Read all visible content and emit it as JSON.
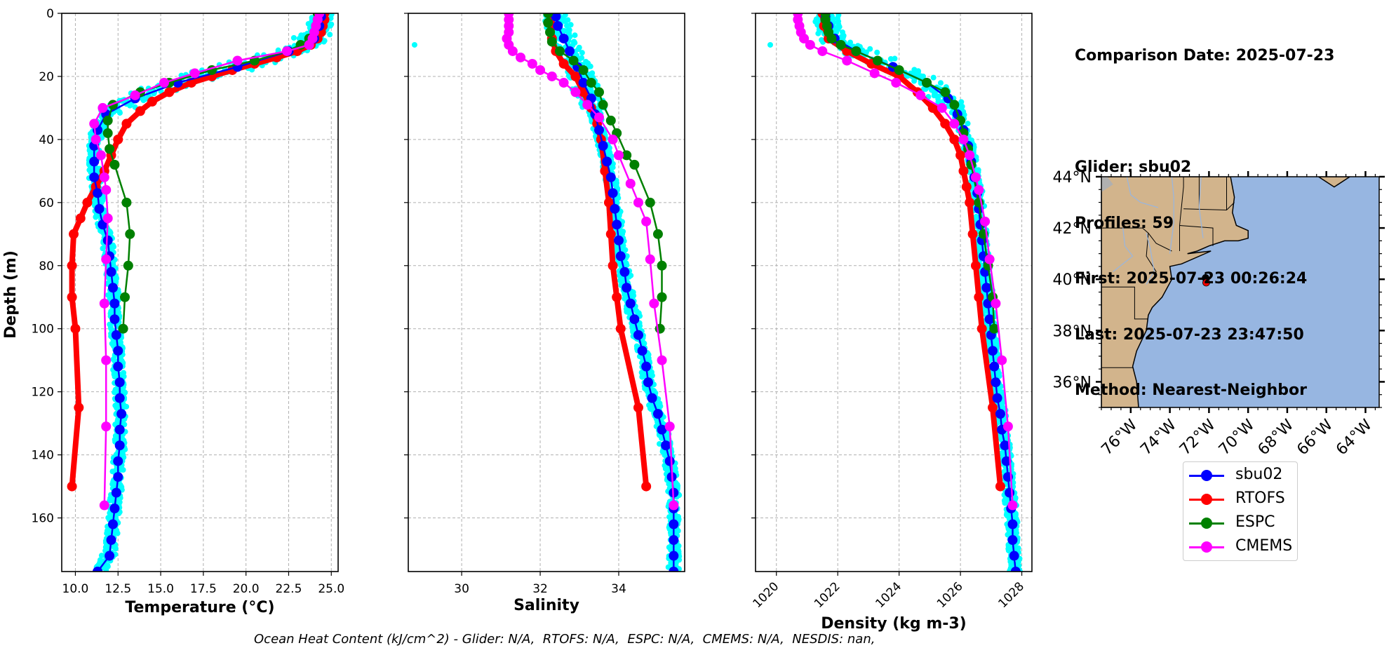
{
  "info_panel": {
    "lines": [
      "Comparison Date: 2025-07-23",
      "",
      "Glider: sbu02",
      "Profiles: 59",
      "First: 2025-07-23 00:26:24",
      "Last: 2025-07-23 23:47:50",
      "Method: Nearest-Neighbor"
    ]
  },
  "legend": {
    "items": [
      {
        "label": "sbu02",
        "color": "#0000ff"
      },
      {
        "label": "RTOFS",
        "color": "#ff0000"
      },
      {
        "label": "ESPC",
        "color": "#008000"
      },
      {
        "label": "CMEMS",
        "color": "#ff00ff"
      }
    ]
  },
  "footer": {
    "text": "Ocean Heat Content (kJ/cm^2) - Glider: N/A,  RTOFS: N/A,  ESPC: N/A,  CMEMS: N/A,  NESDIS: nan,"
  },
  "colors": {
    "glider_scatter": "#00ffff",
    "glider": "#0000ff",
    "rtofs": "#ff0000",
    "espc": "#008000",
    "cmems": "#ff00ff",
    "land": "#d2b48c",
    "ocean": "#97b6e1",
    "grid": "#b0b0b0"
  },
  "chart_data": [
    {
      "type": "line",
      "title": "",
      "xlabel": "Temperature (°C)",
      "ylabel": "Depth (m)",
      "xlim": [
        9.2,
        25.4
      ],
      "ylim": [
        177,
        0
      ],
      "xticks": [
        10.0,
        12.5,
        15.0,
        17.5,
        20.0,
        22.5,
        25.0
      ],
      "xtick_labels": [
        "10.0",
        "12.5",
        "15.0",
        "17.5",
        "20.0",
        "22.5",
        "25.0"
      ],
      "yticks": [
        0,
        20,
        40,
        60,
        80,
        100,
        120,
        140,
        160
      ],
      "ytick_labels": [
        "0",
        "20",
        "40",
        "60",
        "80",
        "100",
        "120",
        "140",
        "160"
      ],
      "grid": true,
      "series": [
        {
          "name": "sbu02",
          "depth": [
            1,
            4,
            8,
            12,
            17,
            22,
            27,
            32,
            37,
            42,
            47,
            52,
            57,
            62,
            67,
            72,
            77,
            82,
            87,
            92,
            97,
            102,
            107,
            112,
            117,
            122,
            127,
            132,
            137,
            142,
            147,
            152,
            157,
            162,
            167,
            172,
            177
          ],
          "values": [
            24.4,
            24.3,
            24.0,
            22.5,
            19.5,
            16.0,
            13.5,
            11.8,
            11.3,
            11.1,
            11.1,
            11.1,
            11.3,
            11.4,
            11.6,
            11.9,
            12.0,
            12.1,
            12.2,
            12.3,
            12.3,
            12.4,
            12.5,
            12.5,
            12.6,
            12.6,
            12.7,
            12.6,
            12.6,
            12.5,
            12.5,
            12.4,
            12.3,
            12.2,
            12.1,
            12.0,
            11.3
          ]
        },
        {
          "name": "RTOFS",
          "depth": [
            0,
            2,
            4,
            6,
            8,
            10,
            12,
            14,
            16,
            18,
            20,
            22,
            25,
            28,
            31,
            35,
            40,
            45,
            50,
            55,
            60,
            65,
            70,
            80,
            90,
            100,
            125,
            150
          ],
          "values": [
            24.6,
            24.6,
            24.5,
            24.4,
            24.2,
            23.8,
            23.0,
            21.8,
            20.5,
            19.2,
            18.0,
            16.8,
            15.5,
            14.5,
            13.8,
            13.0,
            12.5,
            12.1,
            11.7,
            11.2,
            10.7,
            10.3,
            9.9,
            9.8,
            9.8,
            10.0,
            10.2,
            9.8
          ]
        },
        {
          "name": "ESPC",
          "depth": [
            0,
            2,
            4,
            6,
            8,
            10,
            12,
            15,
            18,
            22,
            25,
            29,
            34,
            38,
            43,
            48,
            60,
            70,
            80,
            90,
            100
          ],
          "values": [
            24.2,
            24.2,
            24.1,
            24.0,
            23.7,
            23.2,
            22.4,
            20.5,
            18.0,
            15.5,
            13.8,
            12.2,
            11.9,
            11.9,
            12.0,
            12.3,
            13.0,
            13.2,
            13.1,
            12.9,
            12.8
          ]
        },
        {
          "name": "CMEMS",
          "depth": [
            0,
            2,
            4,
            6,
            8,
            10,
            12,
            15,
            19,
            22,
            26,
            30,
            35,
            40,
            45,
            52,
            56,
            65,
            78,
            92,
            110,
            131,
            156
          ],
          "values": [
            24.3,
            24.2,
            24.1,
            24.0,
            23.9,
            23.7,
            22.4,
            19.5,
            17.0,
            15.2,
            13.5,
            11.6,
            11.1,
            11.2,
            11.5,
            11.7,
            11.8,
            11.9,
            11.8,
            11.7,
            11.8,
            11.8,
            11.7
          ]
        }
      ]
    },
    {
      "type": "line",
      "title": "",
      "xlabel": "Salinity",
      "ylabel": "",
      "xlim": [
        28.64,
        35.68
      ],
      "ylim": [
        177,
        0
      ],
      "xticks": [
        30,
        32,
        34
      ],
      "xtick_labels": [
        "30",
        "32",
        "34"
      ],
      "yticks": [
        0,
        20,
        40,
        60,
        80,
        100,
        120,
        140,
        160
      ],
      "grid": true,
      "series": [
        {
          "name": "sbu02",
          "depth": [
            1,
            4,
            8,
            12,
            17,
            22,
            27,
            32,
            37,
            42,
            47,
            52,
            57,
            62,
            67,
            72,
            77,
            82,
            87,
            92,
            97,
            102,
            107,
            112,
            117,
            122,
            127,
            132,
            137,
            142,
            147,
            152,
            157,
            162,
            167,
            172,
            177
          ],
          "values": [
            32.4,
            32.45,
            32.6,
            32.75,
            32.95,
            33.1,
            33.3,
            33.4,
            33.5,
            33.6,
            33.7,
            33.8,
            33.85,
            33.9,
            33.95,
            34.0,
            34.05,
            34.15,
            34.2,
            34.3,
            34.4,
            34.5,
            34.6,
            34.7,
            34.75,
            34.85,
            35.0,
            35.1,
            35.2,
            35.3,
            35.35,
            35.4,
            35.4,
            35.4,
            35.4,
            35.4,
            35.4
          ]
        },
        {
          "name": "RTOFS",
          "depth": [
            0,
            4,
            8,
            12,
            16,
            20,
            25,
            30,
            35,
            40,
            50,
            60,
            70,
            80,
            90,
            100,
            125,
            150
          ],
          "values": [
            32.3,
            32.3,
            32.3,
            32.4,
            32.6,
            32.9,
            33.1,
            33.3,
            33.45,
            33.55,
            33.65,
            33.75,
            33.8,
            33.85,
            33.95,
            34.05,
            34.5,
            34.7
          ]
        },
        {
          "name": "ESPC",
          "depth": [
            0,
            3,
            6,
            9,
            12,
            15,
            18,
            22,
            25,
            29,
            34,
            38,
            45,
            48,
            60,
            70,
            80,
            90,
            100
          ],
          "values": [
            32.2,
            32.2,
            32.25,
            32.3,
            32.5,
            32.85,
            33.1,
            33.3,
            33.5,
            33.6,
            33.8,
            33.95,
            34.2,
            34.4,
            34.8,
            35.0,
            35.1,
            35.1,
            35.05
          ]
        },
        {
          "name": "CMEMS",
          "depth": [
            0,
            2,
            4,
            6,
            8,
            10,
            12,
            14,
            16,
            18,
            20,
            22,
            25,
            29,
            33,
            40,
            45,
            54,
            60,
            66,
            78,
            92,
            110,
            131,
            156
          ],
          "values": [
            31.2,
            31.2,
            31.2,
            31.2,
            31.15,
            31.2,
            31.3,
            31.5,
            31.8,
            32.0,
            32.3,
            32.6,
            32.9,
            33.2,
            33.5,
            33.85,
            34.0,
            34.3,
            34.5,
            34.7,
            34.8,
            34.9,
            35.1,
            35.3,
            35.4
          ]
        }
      ],
      "scatter_outliers": [
        {
          "value": 28.8,
          "depth": 10
        }
      ]
    },
    {
      "type": "line",
      "title": "",
      "xlabel": "Density (kg m-3)",
      "ylabel": "",
      "xlim": [
        1019.32,
        1028.33
      ],
      "ylim": [
        177,
        0
      ],
      "xticks": [
        1020,
        1022,
        1024,
        1026,
        1028
      ],
      "xtick_labels": [
        "1020",
        "1022",
        "1024",
        "1026",
        "1028"
      ],
      "yticks": [
        0,
        20,
        40,
        60,
        80,
        100,
        120,
        140,
        160
      ],
      "grid": true,
      "series": [
        {
          "name": "sbu02",
          "depth": [
            1,
            4,
            8,
            12,
            17,
            22,
            27,
            32,
            37,
            42,
            47,
            52,
            57,
            62,
            67,
            72,
            77,
            82,
            87,
            92,
            97,
            102,
            107,
            112,
            117,
            122,
            127,
            132,
            137,
            142,
            147,
            152,
            157,
            162,
            167,
            172,
            177
          ],
          "values": [
            1021.6,
            1021.7,
            1021.9,
            1022.6,
            1023.8,
            1024.9,
            1025.6,
            1025.9,
            1026.1,
            1026.25,
            1026.35,
            1026.45,
            1026.55,
            1026.6,
            1026.65,
            1026.7,
            1026.75,
            1026.8,
            1026.85,
            1026.9,
            1026.95,
            1027.0,
            1027.05,
            1027.1,
            1027.15,
            1027.2,
            1027.3,
            1027.35,
            1027.45,
            1027.5,
            1027.55,
            1027.6,
            1027.65,
            1027.7,
            1027.7,
            1027.75,
            1027.8
          ]
        },
        {
          "name": "RTOFS",
          "depth": [
            0,
            4,
            8,
            12,
            16,
            20,
            25,
            30,
            35,
            40,
            45,
            50,
            55,
            60,
            70,
            80,
            90,
            100,
            125,
            150
          ],
          "values": [
            1021.5,
            1021.55,
            1021.7,
            1022.3,
            1023.1,
            1024.0,
            1024.6,
            1025.1,
            1025.5,
            1025.8,
            1026.0,
            1026.1,
            1026.2,
            1026.3,
            1026.4,
            1026.5,
            1026.6,
            1026.7,
            1027.05,
            1027.3
          ]
        },
        {
          "name": "ESPC",
          "depth": [
            0,
            2,
            4,
            6,
            8,
            10,
            12,
            15,
            18,
            22,
            25,
            29,
            34,
            38,
            43,
            48,
            60,
            70,
            80,
            90,
            100
          ],
          "values": [
            1021.6,
            1021.6,
            1021.65,
            1021.7,
            1021.8,
            1022.1,
            1022.6,
            1023.3,
            1024.0,
            1024.9,
            1025.5,
            1025.8,
            1026.0,
            1026.1,
            1026.25,
            1026.35,
            1026.6,
            1026.75,
            1026.9,
            1027.05,
            1027.1
          ]
        },
        {
          "name": "CMEMS",
          "depth": [
            0,
            2,
            4,
            6,
            8,
            10,
            12,
            15,
            19,
            22,
            26,
            30,
            35,
            40,
            45,
            52,
            56,
            66,
            78,
            92,
            110,
            131,
            156
          ],
          "values": [
            1020.7,
            1020.7,
            1020.75,
            1020.8,
            1020.9,
            1021.1,
            1021.5,
            1022.3,
            1023.2,
            1023.9,
            1024.7,
            1025.4,
            1025.8,
            1026.1,
            1026.3,
            1026.5,
            1026.6,
            1026.8,
            1026.95,
            1027.15,
            1027.35,
            1027.55,
            1027.7
          ]
        }
      ],
      "scatter_outliers": [
        {
          "value": 1019.8,
          "depth": 10
        }
      ]
    },
    {
      "type": "scatter",
      "title": "",
      "xlabel": "",
      "ylabel": "",
      "map": true,
      "lon_range": [
        -77.5,
        -63.3
      ],
      "lat_range": [
        35,
        44
      ],
      "xticks": [
        -76,
        -74,
        -72,
        -70,
        -68,
        -66,
        -64
      ],
      "xtick_labels": [
        "76°W",
        "74°W",
        "72°W",
        "70°W",
        "68°W",
        "66°W",
        "64°W"
      ],
      "yticks": [
        36,
        38,
        40,
        42,
        44
      ],
      "ytick_labels": [
        "36°N",
        "38°N",
        "40°N",
        "42°N",
        "44°N"
      ],
      "points": [
        {
          "name": "glider-track",
          "lon": -72.17,
          "lat": 40.05,
          "color": "#000000"
        },
        {
          "name": "model-location",
          "lon": -72.14,
          "lat": 39.87,
          "color": "#ff0000"
        }
      ]
    }
  ]
}
